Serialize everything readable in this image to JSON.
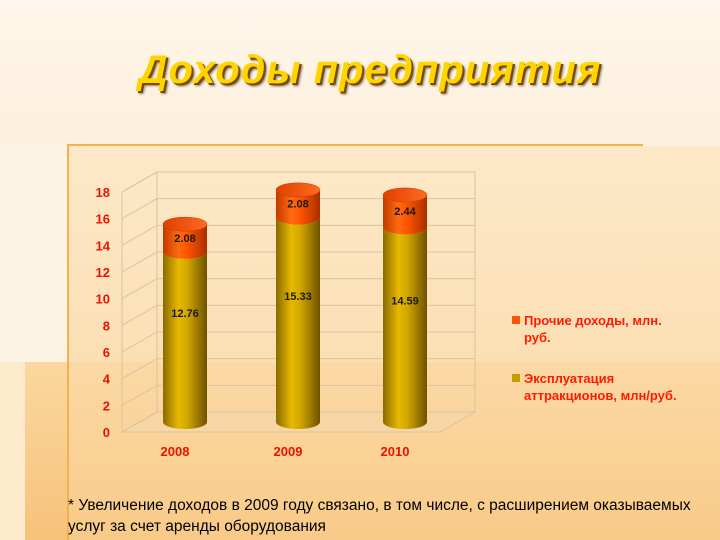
{
  "title": "Доходы предприятия",
  "footnote": "* Увеличение доходов в 2009 году связано, в том числе, с расширением оказываемых услуг за счет аренды оборудования",
  "chart_data": {
    "type": "bar",
    "stacked": true,
    "three_d": true,
    "categories": [
      "2008",
      "2009",
      "2010"
    ],
    "series": [
      {
        "name": "Эксплуатация аттракционов, млн/руб.",
        "values": [
          12.76,
          15.33,
          14.59
        ],
        "color": "#c79a00"
      },
      {
        "name": "Прочие доходы, млн. руб.",
        "values": [
          2.08,
          2.08,
          2.44
        ],
        "color": "#ff5500"
      }
    ],
    "yticks": [
      "0",
      "2",
      "4",
      "6",
      "8",
      "10",
      "12",
      "14",
      "16",
      "18"
    ],
    "ylim": [
      0,
      18
    ],
    "grid": true,
    "legend_position": "right"
  }
}
